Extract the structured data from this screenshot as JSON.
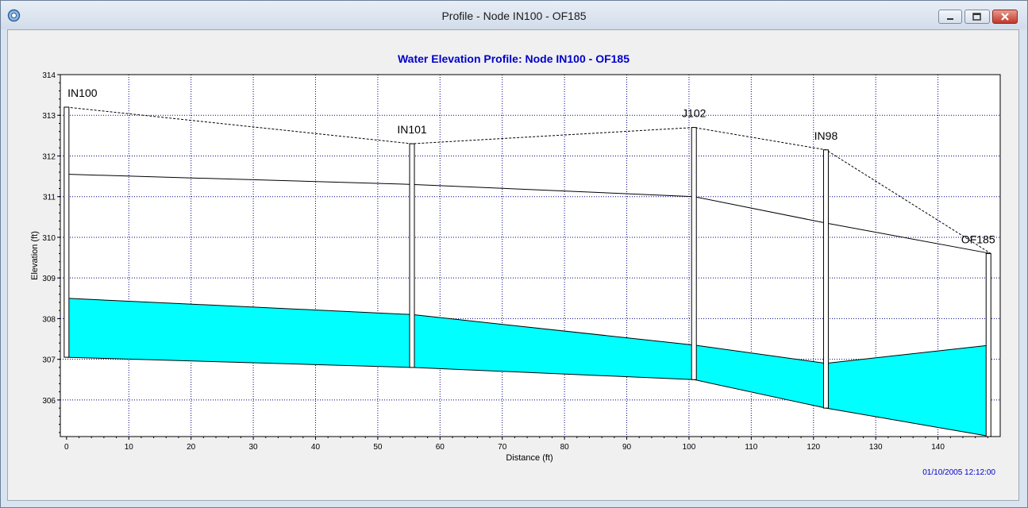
{
  "window": {
    "title": "Profile - Node IN100 - OF185"
  },
  "chart_data": {
    "type": "profile",
    "title": "Water Elevation Profile:  Node IN100 - OF185",
    "xlabel": "Distance (ft)",
    "ylabel": "Elevation (ft)",
    "xlim": [
      -1,
      150
    ],
    "ylim": [
      305.1,
      314
    ],
    "xticks": [
      "0",
      "10",
      "20",
      "30",
      "40",
      "50",
      "60",
      "70",
      "80",
      "90",
      "100",
      "110",
      "120",
      "130",
      "140"
    ],
    "yticks": [
      "306",
      "307",
      "308",
      "309",
      "310",
      "311",
      "312",
      "313",
      "314"
    ],
    "grid": true,
    "nodes": [
      {
        "name": "IN100",
        "x": 0,
        "invert": 307.05,
        "rim": 313.2
      },
      {
        "name": "IN101",
        "x": 55.5,
        "invert": 306.8,
        "rim": 312.3
      },
      {
        "name": "J102",
        "x": 100.8,
        "invert": 306.5,
        "rim": 312.7
      },
      {
        "name": "IN98",
        "x": 122,
        "invert": 305.8,
        "rim": 312.15
      },
      {
        "name": "OF185",
        "x": 148.5,
        "invert": 305.1,
        "rim": 309.6
      }
    ],
    "series": [
      {
        "name": "",
        "points": [
          [
            0,
            311.55
          ],
          [
            55.5,
            311.3
          ],
          [
            100.8,
            311.0
          ],
          [
            122,
            310.35
          ],
          [
            148.5,
            309.6
          ]
        ]
      },
      {
        "name": "",
        "points": [
          [
            0,
            308.5
          ],
          [
            55.5,
            308.1
          ],
          [
            100.8,
            307.35
          ],
          [
            122,
            306.9
          ],
          [
            148.5,
            307.35
          ]
        ]
      }
    ],
    "timestamp": "01/10/2005 12:12:00",
    "colors": {
      "water": "#00ffff",
      "title": "#0000cc",
      "timestamp": "#0000cc",
      "grid": "#000080"
    }
  }
}
